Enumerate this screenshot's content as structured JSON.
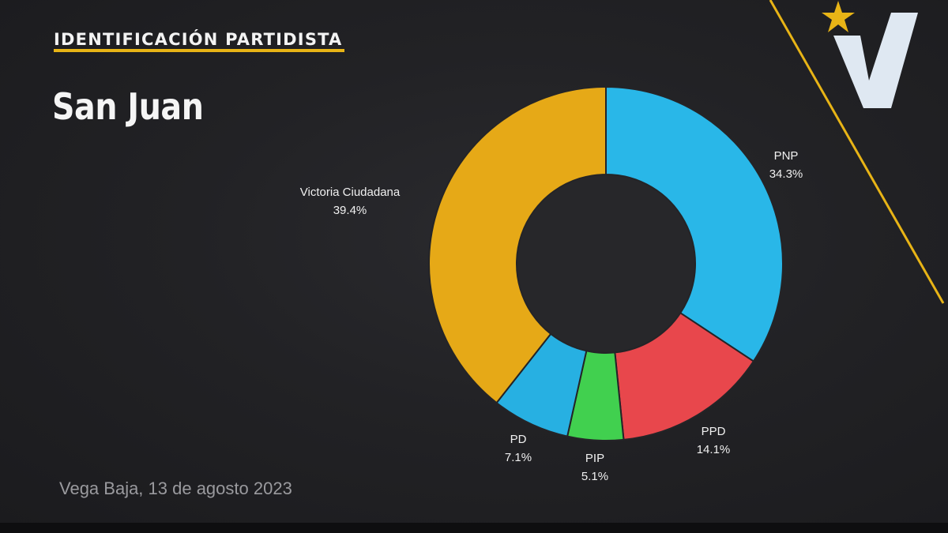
{
  "header": {
    "section_label": "IDENTIFICACIÓN PARTIDISTA",
    "title": "San Juan"
  },
  "footer": {
    "location_date": "Vega Baja, 13 de agosto 2023"
  },
  "colors": {
    "accent": "#e8b416",
    "logo": "#dfe8f2"
  },
  "chart_data": {
    "type": "pie",
    "style": "donut",
    "grid": false,
    "slices": [
      {
        "label": "PNP",
        "value_label": "34.3%",
        "value": 34.3,
        "color": "#29b7e8"
      },
      {
        "label": "PPD",
        "value_label": "14.1%",
        "value": 14.1,
        "color": "#e8474c"
      },
      {
        "label": "PIP",
        "value_label": "5.1%",
        "value": 5.1,
        "color": "#41d04f"
      },
      {
        "label": "PD",
        "value_label": "7.1%",
        "value": 7.1,
        "color": "#27b0e2"
      },
      {
        "label": "Victoria Ciudadana",
        "value_label": "39.4%",
        "value": 39.4,
        "color": "#e6a917"
      }
    ]
  }
}
